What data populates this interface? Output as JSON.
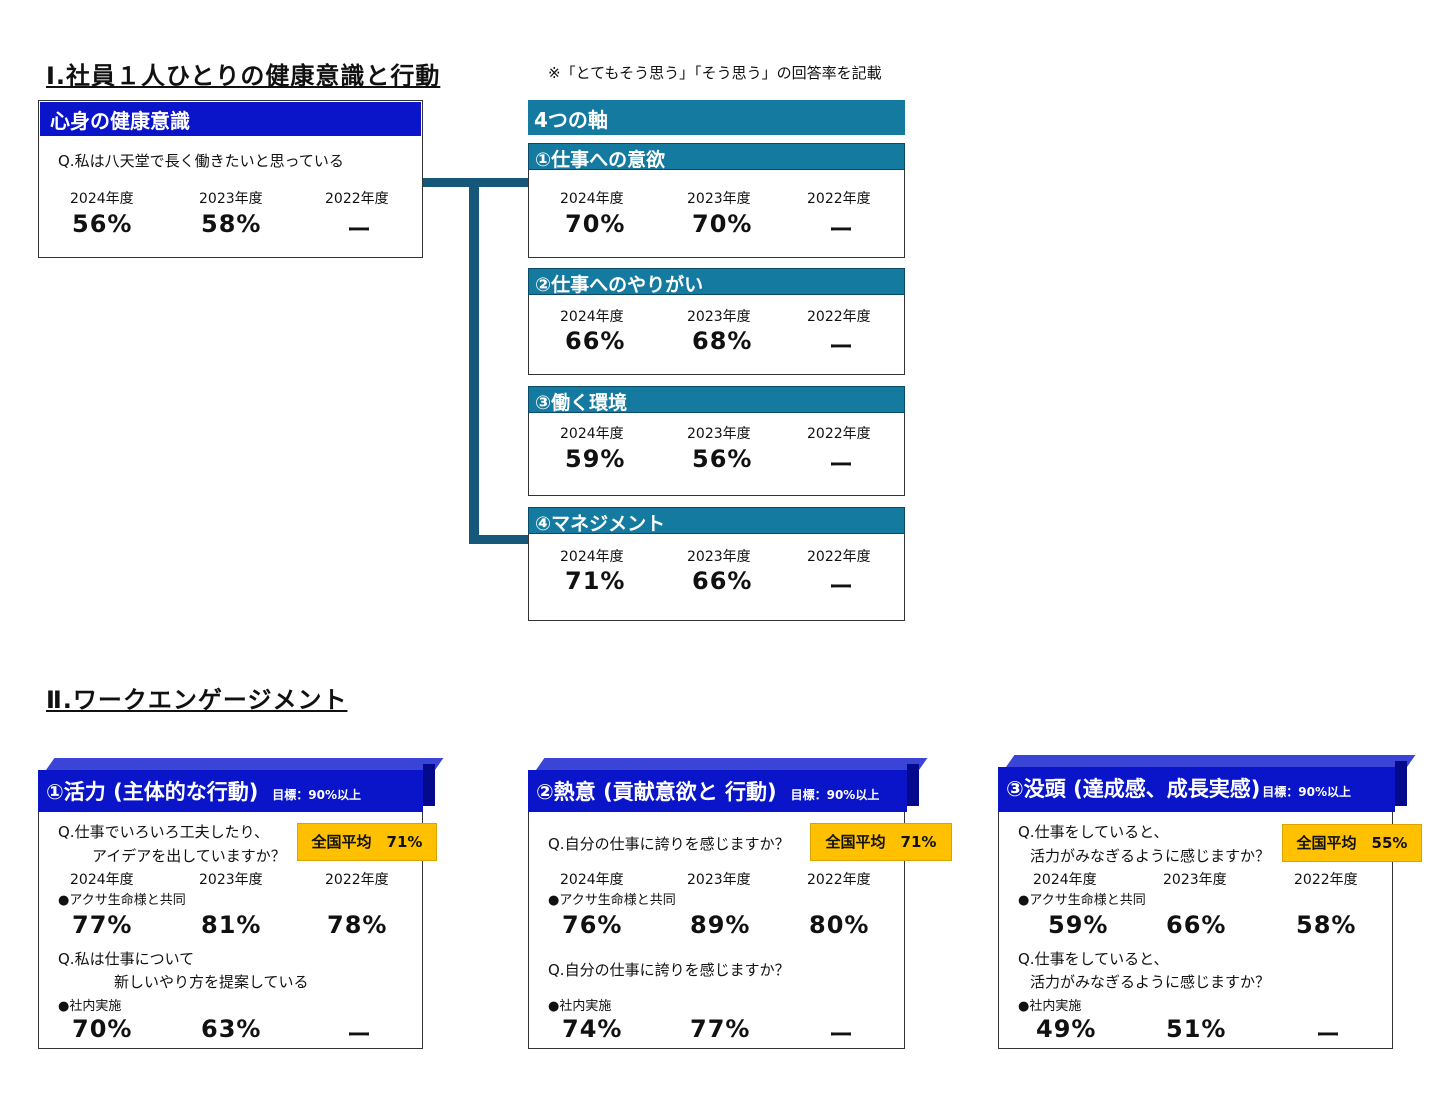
{
  "section1": {
    "title": "Ⅰ.社員１人ひとりの健康意識と行動",
    "note": "※「とてもそう思う」「そう思う」の回答率を記載",
    "health": {
      "header": "心身の健康意識",
      "question": "Q.私は八天堂で長く働きたいと思っている",
      "years": [
        "2024年度",
        "2023年度",
        "2022年度"
      ],
      "values": [
        "56%",
        "58%",
        "ー"
      ]
    },
    "axes_header": "4つの軸",
    "axes": [
      {
        "title": "①仕事への意欲",
        "years": [
          "2024年度",
          "2023年度",
          "2022年度"
        ],
        "values": [
          "70%",
          "70%",
          "ー"
        ]
      },
      {
        "title": "②仕事へのやりがい",
        "years": [
          "2024年度",
          "2023年度",
          "2022年度"
        ],
        "values": [
          "66%",
          "68%",
          "ー"
        ]
      },
      {
        "title": "③働く環境",
        "years": [
          "2024年度",
          "2023年度",
          "2022年度"
        ],
        "values": [
          "59%",
          "56%",
          "ー"
        ]
      },
      {
        "title": "④マネジメント",
        "years": [
          "2024年度",
          "2023年度",
          "2022年度"
        ],
        "values": [
          "71%",
          "66%",
          "ー"
        ]
      }
    ]
  },
  "section2": {
    "title": "Ⅱ.ワークエンゲージメント",
    "cards": [
      {
        "header": "①活力 (主体的な行動)",
        "goal": "目標：90%以上",
        "badge": "全国平均　71%",
        "q1": [
          "Q.仕事でいろいろ工夫したり、",
          "アイデアを出していますか？"
        ],
        "years": [
          "2024年度",
          "2023年度",
          "2022年度"
        ],
        "src1": "●アクサ生命様と共同",
        "values1": [
          "77%",
          "81%",
          "78%"
        ],
        "q2": [
          "Q.私は仕事について",
          "新しいやり方を提案している"
        ],
        "src2": "●社内実施",
        "values2": [
          "70%",
          "63%",
          "ー"
        ]
      },
      {
        "header": "②熱意 (貢献意欲と 行動)",
        "goal": "目標：90%以上",
        "badge": "全国平均　71%",
        "q1": [
          "Q.自分の仕事に誇りを感じますか？"
        ],
        "years": [
          "2024年度",
          "2023年度",
          "2022年度"
        ],
        "src1": "●アクサ生命様と共同",
        "values1": [
          "76%",
          "89%",
          "80%"
        ],
        "q2": [
          "Q.自分の仕事に誇りを感じますか？"
        ],
        "src2": "●社内実施",
        "values2": [
          "74%",
          "77%",
          "ー"
        ]
      },
      {
        "header": "③没頭 (達成感、成長実感)",
        "goal": "目標：90%以上",
        "badge": "全国平均　55%",
        "q1": [
          "Q.仕事をしていると、",
          "活力がみなぎるように感じますか？"
        ],
        "years": [
          "2024年度",
          "2023年度",
          "2022年度"
        ],
        "src1": "●アクサ生命様と共同",
        "values1": [
          "59%",
          "66%",
          "58%"
        ],
        "q2": [
          "Q.仕事をしていると、",
          "活力がみなぎるように感じますか？"
        ],
        "src2": "●社内実施",
        "values2": [
          "49%",
          "51%",
          "ー"
        ]
      }
    ]
  }
}
